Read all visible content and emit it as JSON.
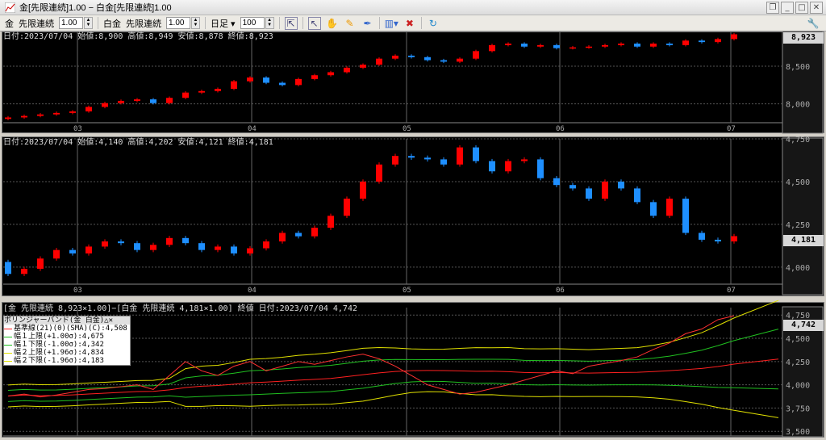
{
  "window": {
    "title": "金[先限連続]1.00 − 白金[先限連続]1.00",
    "buttons": [
      "restore-icon",
      "minimize-icon",
      "maximize-icon",
      "close-icon"
    ]
  },
  "toolbar": {
    "sym1": "金",
    "contract1": "先限連続",
    "mult1": "1.00",
    "sym2": "白金",
    "contract2": "先限連続",
    "mult2": "1.00",
    "period": "日足",
    "bars": "100",
    "icons": [
      "crosshair-icon",
      "pointer-icon",
      "hand-icon",
      "pencil-icon",
      "pen-icon",
      "bar-chart-icon",
      "delete-icon",
      "refresh-icon",
      "settings-icon"
    ]
  },
  "colors": {
    "up": "#ff0000",
    "down": "#1e8fff",
    "grid": "#555555",
    "mid": "#ff2020",
    "band1": "#20c020",
    "band2": "#e0e000",
    "spread": "#ff3030"
  },
  "x_ticks": [
    {
      "label": "03",
      "index": 4.3
    },
    {
      "label": "04",
      "index": 15.1
    },
    {
      "label": "05",
      "index": 24.7
    },
    {
      "label": "06",
      "index": 34.2
    },
    {
      "label": "07",
      "index": 44.8
    }
  ],
  "panel1": {
    "header": "日付:2023/07/04 始値:8,900 高値:8,949 安値:8,878 終値:8,923",
    "last": "8,923",
    "ylim": [
      7750,
      8950
    ],
    "yticks": [
      {
        "v": 8500,
        "label": "8,500"
      },
      {
        "v": 8000,
        "label": "8,000"
      }
    ],
    "close": [
      7820,
      7840,
      7860,
      7880,
      7900,
      7960,
      8010,
      8040,
      8060,
      8010,
      8080,
      8150,
      8170,
      8200,
      8300,
      8350,
      8280,
      8250,
      8330,
      8380,
      8420,
      8480,
      8520,
      8600,
      8640,
      8620,
      8580,
      8560,
      8600,
      8700,
      8780,
      8800,
      8760,
      8780,
      8740,
      8750,
      8760,
      8780,
      8800,
      8760,
      8800,
      8780,
      8840,
      8820,
      8860,
      8923
    ],
    "first_open": 7800
  },
  "panel2": {
    "header": "日付:2023/07/04 始値:4,140 高値:4,202 安値:4,121 終値:4,181",
    "last": "4,181",
    "ylim": [
      3900,
      4750
    ],
    "yticks": [
      {
        "v": 4750,
        "label": "4,750"
      },
      {
        "v": 4500,
        "label": "4,500"
      },
      {
        "v": 4250,
        "label": "4,250"
      },
      {
        "v": 4000,
        "label": "4,000"
      }
    ],
    "close": [
      3960,
      3990,
      4050,
      4100,
      4080,
      4120,
      4150,
      4140,
      4100,
      4130,
      4170,
      4140,
      4100,
      4120,
      4080,
      4110,
      4150,
      4200,
      4180,
      4230,
      4300,
      4400,
      4500,
      4600,
      4650,
      4640,
      4630,
      4600,
      4700,
      4620,
      4560,
      4620,
      4630,
      4520,
      4480,
      4460,
      4400,
      4500,
      4460,
      4380,
      4300,
      4400,
      4200,
      4160,
      4150,
      4181
    ],
    "first_open": 4030
  },
  "panel3": {
    "header": "[金 先限連続 8,923×1.00]−[白金 先限連続 4,181×1.00] 終値 日付:2023/07/04 4,742",
    "last": "4,742",
    "ylim": [
      3450,
      4830
    ],
    "yticks": [
      {
        "v": 4750,
        "label": "4,750"
      },
      {
        "v": 4500,
        "label": "4,500"
      },
      {
        "v": 4250,
        "label": "4,250"
      },
      {
        "v": 4000,
        "label": "4,000"
      },
      {
        "v": 3750,
        "label": "3,750"
      },
      {
        "v": 3500,
        "label": "3,500"
      }
    ],
    "spread": [
      3880,
      3900,
      3870,
      3890,
      3920,
      3950,
      3960,
      3980,
      4000,
      3950,
      4100,
      4250,
      4150,
      4100,
      4200,
      4250,
      4150,
      4200,
      4250,
      4220,
      4260,
      4300,
      4330,
      4280,
      4200,
      4100,
      4000,
      3950,
      3900,
      3920,
      3960,
      4000,
      4050,
      4100,
      4150,
      4120,
      4200,
      4230,
      4260,
      4300,
      4380,
      4450,
      4550,
      4600,
      4700,
      4742
    ],
    "legend": {
      "title": "ボリンジャーバンド(金 白金)",
      "items": [
        "基準線(21)(0)(SMA)(C):4,508",
        "幅１上限(+1.00σ):4,675",
        "幅１下限(-1.00σ):4,342",
        "幅２上限(+1.96σ):4,834",
        "幅２下限(-1.96σ):4,183"
      ]
    }
  }
}
